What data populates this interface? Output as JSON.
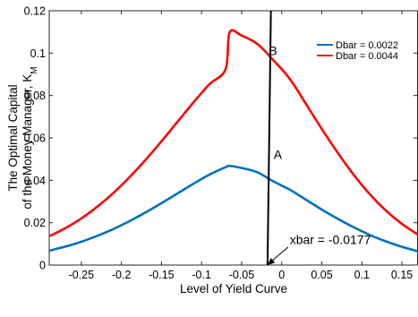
{
  "chart_data": {
    "type": "line",
    "xlabel": "Level of Yield Curve",
    "ylabel_line1": "The Optimal Capital",
    "ylabel_line2": "of the Money Manager, K",
    "ylabel_sub": "M",
    "xlim": [
      -0.29,
      0.17
    ],
    "ylim": [
      0,
      0.12
    ],
    "xticks": [
      -0.25,
      -0.2,
      -0.15,
      -0.1,
      -0.05,
      0,
      0.05,
      0.1,
      0.15
    ],
    "xtick_labels": [
      "-0.25",
      "-0.2",
      "-0.15",
      "-0.1",
      "-0.05",
      "0",
      "0.05",
      "0.1",
      "0.15"
    ],
    "yticks": [
      0,
      0.02,
      0.04,
      0.06,
      0.08,
      0.1,
      0.12
    ],
    "ytick_labels": [
      "0",
      "0.02",
      "0.04",
      "0.06",
      "0.08",
      "0.1",
      "0.12"
    ],
    "grid": false,
    "legend_position": "top-right",
    "series": [
      {
        "name": "Dbar = 0.0022",
        "color": "#0072BD",
        "x": [
          -0.29,
          -0.27,
          -0.25,
          -0.23,
          -0.21,
          -0.19,
          -0.17,
          -0.15,
          -0.13,
          -0.11,
          -0.09,
          -0.07,
          -0.065,
          -0.05,
          -0.03,
          -0.01,
          0.01,
          0.03,
          0.05,
          0.07,
          0.09,
          0.11,
          0.13,
          0.15,
          0.17
        ],
        "y": [
          0.0068,
          0.0087,
          0.011,
          0.0138,
          0.017,
          0.0207,
          0.0248,
          0.0292,
          0.0338,
          0.0384,
          0.0427,
          0.0462,
          0.0468,
          0.0458,
          0.0437,
          0.0394,
          0.0356,
          0.0309,
          0.0262,
          0.0218,
          0.0178,
          0.0142,
          0.0112,
          0.0086,
          0.0065
        ]
      },
      {
        "name": "Dbar = 0.0044",
        "color": "#FF0000",
        "x": [
          -0.29,
          -0.27,
          -0.25,
          -0.23,
          -0.21,
          -0.19,
          -0.17,
          -0.15,
          -0.13,
          -0.11,
          -0.09,
          -0.07,
          -0.065,
          -0.05,
          -0.03,
          -0.01,
          0.01,
          0.03,
          0.05,
          0.07,
          0.09,
          0.11,
          0.13,
          0.15,
          0.17
        ],
        "y": [
          0.0136,
          0.0174,
          0.022,
          0.0276,
          0.034,
          0.0414,
          0.0496,
          0.0584,
          0.0676,
          0.0768,
          0.0854,
          0.0924,
          0.1098,
          0.1083,
          0.1042,
          0.0965,
          0.0879,
          0.0762,
          0.0642,
          0.0529,
          0.0425,
          0.0334,
          0.0257,
          0.0194,
          0.0144
        ]
      },
      {
        "name": "",
        "color": "#000000",
        "x": [
          -0.0177,
          -0.0135
        ],
        "y": [
          0.0,
          0.12
        ]
      }
    ],
    "annotations": [
      {
        "text": "B",
        "x": -0.016,
        "y": 0.099
      },
      {
        "text": "A",
        "x": -0.01,
        "y": 0.05
      },
      {
        "text": "xbar = -0.0177",
        "x": 0.01,
        "y": 0.01
      }
    ],
    "arrow": {
      "from": [
        0.008,
        0.0085
      ],
      "to": [
        -0.0177,
        0.0
      ]
    }
  }
}
